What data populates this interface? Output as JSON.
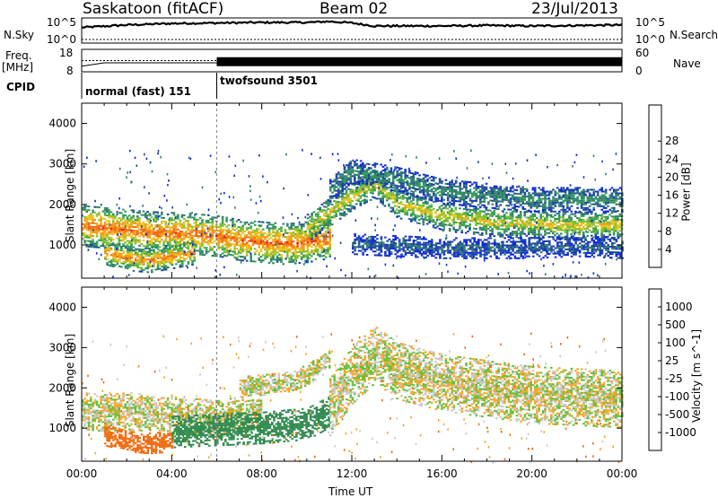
{
  "header": {
    "station": "Saskatoon (fitACF)",
    "beam": "Beam 02",
    "date": "23/Jul/2013"
  },
  "side_labels": {
    "nsky": "N.Sky",
    "nsearch": "N.Search",
    "freq": "Freq.",
    "freq_unit": "[MHz]",
    "nave": "Nave",
    "cpid": "CPID"
  },
  "chart_data": [
    {
      "type": "line",
      "name": "noise-panel",
      "left_ticks": [
        "10^5",
        "10^0"
      ],
      "right_ticks": [
        "10^5",
        "10^0"
      ],
      "series": [
        {
          "name": "N.Sky",
          "x_hours": [
            0,
            2,
            4,
            6,
            8,
            10,
            11,
            12,
            13,
            14,
            16,
            18,
            20,
            22,
            24
          ],
          "values": [
            3.1,
            3.6,
            3.9,
            4.0,
            4.1,
            4.1,
            4.3,
            4.0,
            3.4,
            3.4,
            3.4,
            3.5,
            3.4,
            3.5,
            3.6
          ]
        }
      ]
    },
    {
      "type": "line",
      "name": "freq-nave-panel",
      "left_ticks": [
        "18",
        "8"
      ],
      "right_ticks": [
        "60",
        "0"
      ],
      "series": [
        {
          "name": "Freq.",
          "x_hours": [
            0,
            1,
            6,
            24
          ],
          "values": [
            10.5,
            12.0,
            12.0,
            12.0
          ]
        },
        {
          "name": "Nave",
          "x_hours": [
            0,
            6,
            24
          ],
          "values": [
            32,
            32,
            32
          ]
        }
      ]
    },
    {
      "type": "table",
      "name": "cpid-panel",
      "segments": [
        {
          "label": "normal (fast) 151",
          "start_hour": 0,
          "end_hour": 6
        },
        {
          "label": "twofsound 3501",
          "start_hour": 6,
          "end_hour": 24
        }
      ]
    },
    {
      "type": "heatmap",
      "name": "power-panel",
      "ylabel": "Slant Range [km]",
      "ylim": [
        180,
        4500
      ],
      "yticks": [
        1000,
        2000,
        3000,
        4000
      ],
      "colorbar": {
        "label": "Power [dB]",
        "range": [
          0,
          32
        ],
        "ticks": [
          "4",
          "8",
          "12",
          "16",
          "20",
          "24",
          "28"
        ],
        "colors": [
          "#0a22ea",
          "#1a3fa8",
          "#2f7a6e",
          "#2f9b55",
          "#7cbd2f",
          "#e8c21b",
          "#f39a14",
          "#f2660f",
          "#e31b0e"
        ]
      },
      "bands": [
        {
          "x_hours": [
            0,
            1,
            2,
            3,
            4,
            5,
            6,
            7,
            8,
            9,
            10,
            11
          ],
          "center_km": [
            1450,
            1400,
            1350,
            1300,
            1280,
            1250,
            1200,
            1100,
            1050,
            1000,
            1050,
            1150
          ],
          "width_km": 500,
          "level_db": 28
        },
        {
          "x_hours": [
            1,
            2,
            3,
            4,
            5
          ],
          "center_km": [
            800,
            650,
            600,
            700,
            800
          ],
          "width_km": 300,
          "level_db": 26
        },
        {
          "x_hours": [
            10,
            12,
            13,
            14,
            16,
            18,
            20,
            22,
            24
          ],
          "center_km": [
            1400,
            2200,
            2500,
            2000,
            1700,
            1550,
            1500,
            1450,
            1500
          ],
          "width_km": 350,
          "level_db": 20
        },
        {
          "x_hours": [
            11,
            12,
            14,
            16,
            18,
            20,
            22,
            24
          ],
          "center_km": [
            2300,
            2800,
            2600,
            2300,
            2200,
            2100,
            2100,
            2100
          ],
          "width_km": 300,
          "level_db": 10
        },
        {
          "x_hours": [
            12,
            14,
            16,
            18,
            20,
            22,
            24
          ],
          "center_km": [
            1000,
            950,
            900,
            900,
            900,
            950,
            900
          ],
          "width_km": 250,
          "level_db": 6
        }
      ]
    },
    {
      "type": "heatmap",
      "name": "velocity-panel",
      "ylabel": "Slant Range [km]",
      "xlabel": "Time UT",
      "ylim": [
        180,
        4500
      ],
      "yticks": [
        1000,
        2000,
        3000,
        4000
      ],
      "xlim_hours": [
        0,
        24
      ],
      "xticks": [
        "00:00",
        "04:00",
        "08:00",
        "12:00",
        "16:00",
        "20:00",
        "00:00"
      ],
      "colorbar": {
        "label": "Velocity [m s^-1]",
        "ticks": [
          "1000",
          "500",
          "100",
          "25",
          "-25",
          "-100",
          "-500",
          "-1000"
        ],
        "colors": [
          "#2233b8",
          "#2c70a6",
          "#2f8a4f",
          "#5fc03a",
          "#c8c8c8",
          "#c8c8c8",
          "#f5a623",
          "#f06a10",
          "#e8170d"
        ]
      },
      "bands": [
        {
          "x_hours": [
            0,
            1,
            2,
            3,
            4,
            5,
            6,
            8
          ],
          "center_km": [
            1400,
            1350,
            1400,
            1350,
            1300,
            1250,
            1200,
            1400
          ],
          "width_km": 450,
          "velocity": 0
        },
        {
          "x_hours": [
            1,
            2,
            3,
            4
          ],
          "center_km": [
            800,
            650,
            600,
            650
          ],
          "width_km": 250,
          "velocity": -200
        },
        {
          "x_hours": [
            4,
            6,
            8,
            10,
            11
          ],
          "center_km": [
            900,
            950,
            1000,
            1100,
            1400
          ],
          "width_km": 400,
          "velocity": 200
        },
        {
          "x_hours": [
            11,
            12,
            13,
            14,
            16,
            18,
            20,
            22,
            24
          ],
          "center_km": [
            1500,
            2300,
            2800,
            2400,
            2100,
            1950,
            1800,
            1750,
            1700
          ],
          "width_km": 700,
          "velocity": 0
        },
        {
          "x_hours": [
            7,
            9,
            10,
            11
          ],
          "center_km": [
            2000,
            2100,
            2300,
            2700
          ],
          "width_km": 250,
          "velocity": 0
        }
      ]
    }
  ]
}
